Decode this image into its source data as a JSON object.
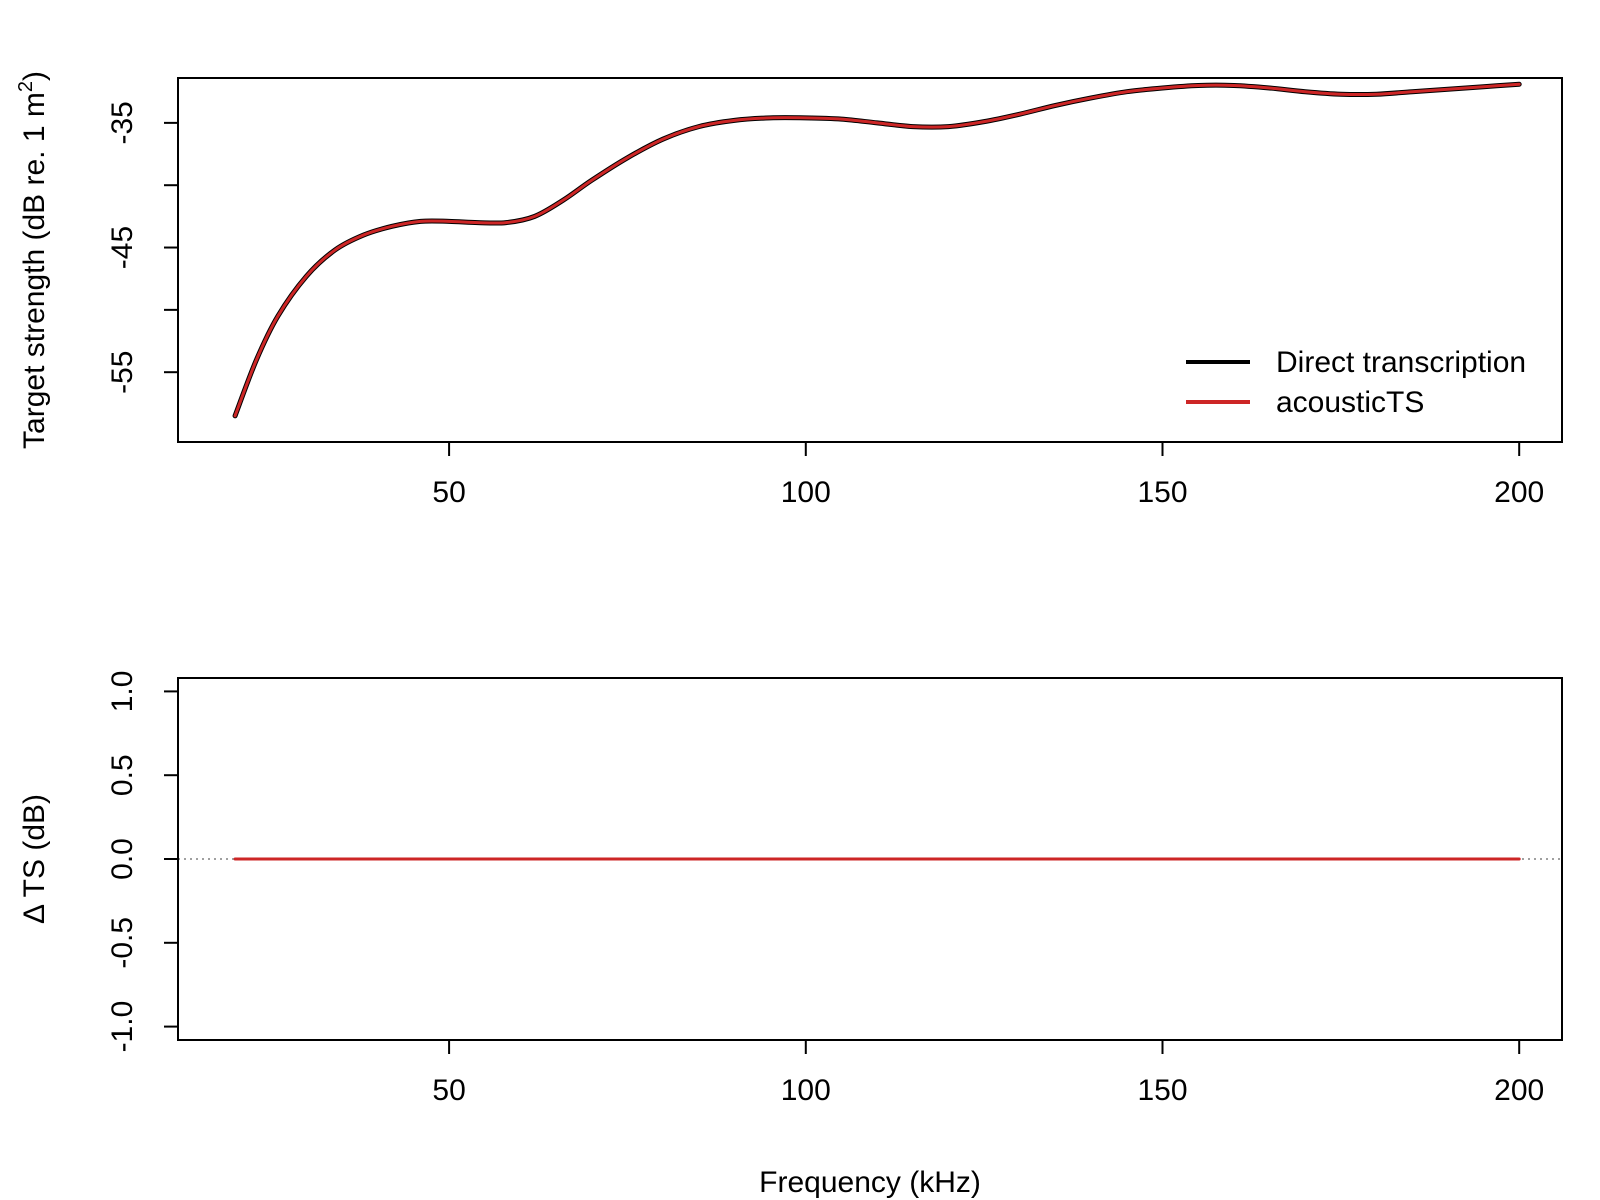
{
  "chart_data": [
    {
      "type": "line",
      "ylabel_main": "Target strength (dB re. 1 m",
      "ylabel_sup": "2",
      "ylabel_close": ")",
      "xlim": [
        12,
        206
      ],
      "ylim": [
        -60.6,
        -31.4
      ],
      "x_ticks": [
        50,
        100,
        150,
        200
      ],
      "y_ticks": [
        -35,
        -40,
        -45,
        -50,
        -55
      ],
      "y_tick_labels": [
        "-35",
        "-45",
        "-55"
      ],
      "legend": {
        "position": "bottom-right",
        "entries": [
          {
            "label": "Direct transcription",
            "color": "#000000"
          },
          {
            "label": "acousticTS",
            "color": "#cd2626"
          }
        ]
      },
      "series": [
        {
          "name": "Direct transcription",
          "color": "#000000",
          "x": [
            20,
            23,
            26,
            30,
            34,
            38,
            42,
            46,
            50,
            54,
            58,
            62,
            66,
            70,
            75,
            80,
            85,
            90,
            95,
            100,
            105,
            110,
            115,
            120,
            125,
            130,
            135,
            140,
            145,
            150,
            155,
            160,
            165,
            170,
            175,
            180,
            185,
            190,
            195,
            200
          ],
          "y": [
            -58.5,
            -54.0,
            -50.5,
            -47.3,
            -45.2,
            -44.0,
            -43.3,
            -42.9,
            -42.9,
            -43.0,
            -43.0,
            -42.5,
            -41.2,
            -39.6,
            -37.8,
            -36.3,
            -35.3,
            -34.8,
            -34.6,
            -34.6,
            -34.7,
            -35.0,
            -35.3,
            -35.3,
            -34.9,
            -34.3,
            -33.6,
            -33.0,
            -32.5,
            -32.2,
            -32.0,
            -32.0,
            -32.2,
            -32.5,
            -32.7,
            -32.7,
            -32.5,
            -32.3,
            -32.1,
            -31.9
          ]
        },
        {
          "name": "acousticTS",
          "color": "#cd2626",
          "x": [
            20,
            23,
            26,
            30,
            34,
            38,
            42,
            46,
            50,
            54,
            58,
            62,
            66,
            70,
            75,
            80,
            85,
            90,
            95,
            100,
            105,
            110,
            115,
            120,
            125,
            130,
            135,
            140,
            145,
            150,
            155,
            160,
            165,
            170,
            175,
            180,
            185,
            190,
            195,
            200
          ],
          "y": [
            -58.5,
            -54.0,
            -50.5,
            -47.3,
            -45.2,
            -44.0,
            -43.3,
            -42.9,
            -42.9,
            -43.0,
            -43.0,
            -42.5,
            -41.2,
            -39.6,
            -37.8,
            -36.3,
            -35.3,
            -34.8,
            -34.6,
            -34.6,
            -34.7,
            -35.0,
            -35.3,
            -35.3,
            -34.9,
            -34.3,
            -33.6,
            -33.0,
            -32.5,
            -32.2,
            -32.0,
            -32.0,
            -32.2,
            -32.5,
            -32.7,
            -32.7,
            -32.5,
            -32.3,
            -32.1,
            -31.9
          ]
        }
      ]
    },
    {
      "type": "line",
      "ylabel": "Δ TS (dB)",
      "xlabel": "Frequency (kHz)",
      "xlim": [
        12,
        206
      ],
      "ylim": [
        -1.08,
        1.08
      ],
      "x_ticks": [
        50,
        100,
        150,
        200
      ],
      "y_ticks": [
        -1.0,
        -0.5,
        0.0,
        0.5,
        1.0
      ],
      "y_tick_labels": [
        "-1.0",
        "-0.5",
        "0.0",
        "0.5",
        "1.0"
      ],
      "reference_line": {
        "y": 0,
        "style": "dotted",
        "color": "#808080"
      },
      "series": [
        {
          "color": "#cd2626",
          "x": [
            20,
            200
          ],
          "y": [
            0,
            0
          ]
        }
      ]
    }
  ]
}
